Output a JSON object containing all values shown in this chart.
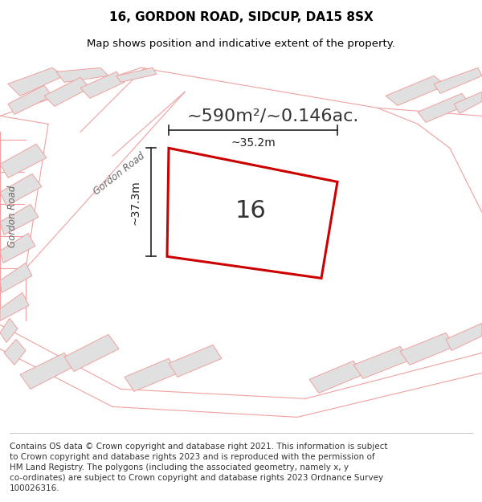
{
  "title_line1": "16, GORDON ROAD, SIDCUP, DA15 8SX",
  "title_line2": "Map shows position and indicative extent of the property.",
  "area_text": "~590m²/~0.146ac.",
  "label_16": "16",
  "dim_height": "~37.3m",
  "dim_width": "~35.2m",
  "footer_lines": [
    "Contains OS data © Crown copyright and database right 2021. This information is subject",
    "to Crown copyright and database rights 2023 and is reproduced with the permission of",
    "HM Land Registry. The polygons (including the associated geometry, namely x, y",
    "co-ordinates) are subject to Crown copyright and database rights 2023 Ordnance Survey",
    "100026316."
  ],
  "bg_color": "#ffffff",
  "map_bg": "#f0f0f0",
  "road_line_color": "#f0a0a0",
  "property_line_color": "#cc0000",
  "property_fill_color": "#ffffff",
  "other_property_fill": "#e0e0e0",
  "title_fontsize": 11,
  "subtitle_fontsize": 9.5,
  "area_fontsize": 16,
  "label_fontsize": 22,
  "dim_fontsize": 10,
  "footer_fontsize": 7.5,
  "road_label_color": "#666666",
  "dim_color": "#222222"
}
